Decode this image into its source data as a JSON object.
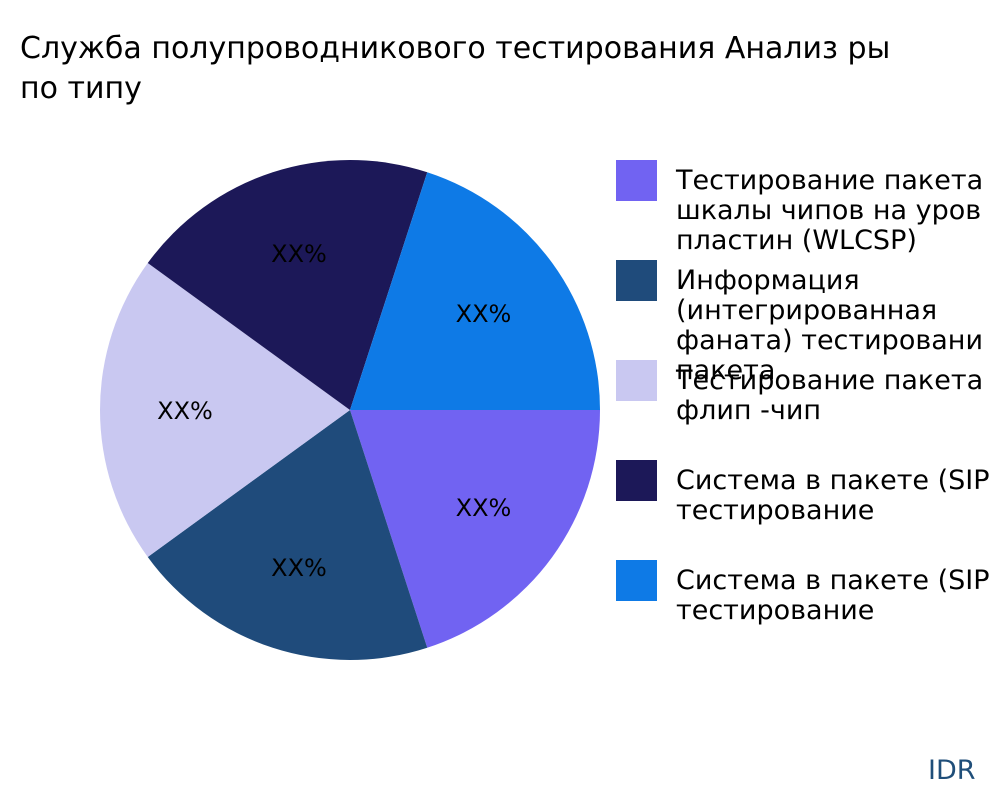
{
  "chart_data": {
    "type": "pie",
    "title_lines": [
      "Служба полупроводникового тестирования Анализ ры",
      "по типу"
    ],
    "slices": [
      {
        "name": "Тестирование пакета шкалы чипов на уровне пластин (WLCSP)",
        "legend_lines": [
          "Тестирование пакета",
          "шкалы чипов на уров",
          "пластин (WLCSP)"
        ],
        "value": 20,
        "label": "XX%",
        "color": "#7163f2"
      },
      {
        "name": "Информация (интегрированная фаната) тестирование пакета",
        "legend_lines": [
          "Информация",
          "(интегрированная",
          "фаната) тестировани",
          "пакета"
        ],
        "value": 20,
        "label": "XX%",
        "color": "#1f4b7b"
      },
      {
        "name": "Тестирование пакета флип -чип",
        "legend_lines": [
          "Тестирование пакета",
          "флип -чип"
        ],
        "value": 20,
        "label": "XX%",
        "color": "#c9c8f1"
      },
      {
        "name": "Система в пакете (SIP) тестирование",
        "legend_lines": [
          "Система в пакете (SIP",
          "тестирование"
        ],
        "value": 20,
        "label": "XX%",
        "color": "#1c1858"
      },
      {
        "name": "Система в пакете (SIP) тестирование",
        "legend_lines": [
          "Система в пакете (SIP",
          "тестирование"
        ],
        "value": 20,
        "label": "XX%",
        "color": "#0e7ae6"
      }
    ],
    "legend_position": "right"
  },
  "watermark": "IDR"
}
